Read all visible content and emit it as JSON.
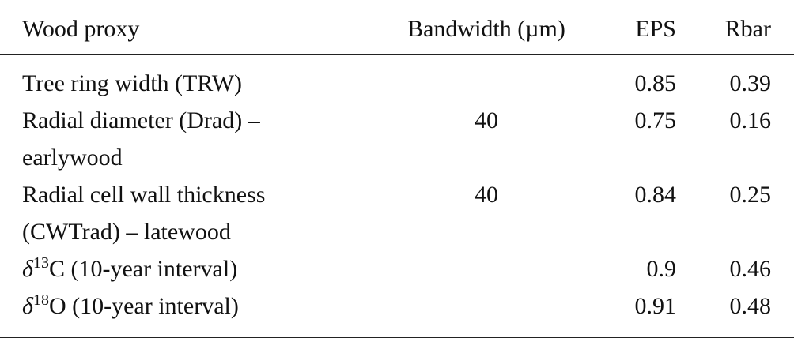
{
  "table": {
    "header": [
      "Wood proxy",
      "Bandwidth (µm)",
      "EPS",
      "Rbar"
    ],
    "rows": [
      {
        "proxy": [
          {
            "text": "Tree ring width (TRW)"
          }
        ],
        "bandwidth": null,
        "eps": 0.85,
        "rbar": 0.39
      },
      {
        "proxy": [
          {
            "text": "Radial diameter (Drad) – earlywood"
          }
        ],
        "bandwidth": 40,
        "eps": 0.75,
        "rbar": 0.16
      },
      {
        "proxy": [
          {
            "text": "Radial cell wall thickness (CWTrad) – latewood"
          }
        ],
        "bandwidth": 40,
        "eps": 0.84,
        "rbar": 0.25
      },
      {
        "proxy": [
          {
            "text": "δ"
          },
          {
            "sup": "13"
          },
          {
            "text": "C (10-year interval)"
          }
        ],
        "bandwidth": null,
        "eps": 0.9,
        "rbar": 0.46
      },
      {
        "proxy": [
          {
            "text": "δ"
          },
          {
            "sup": "18"
          },
          {
            "text": "O (10-year interval)"
          }
        ],
        "bandwidth": null,
        "eps": 0.91,
        "rbar": 0.48
      }
    ]
  }
}
